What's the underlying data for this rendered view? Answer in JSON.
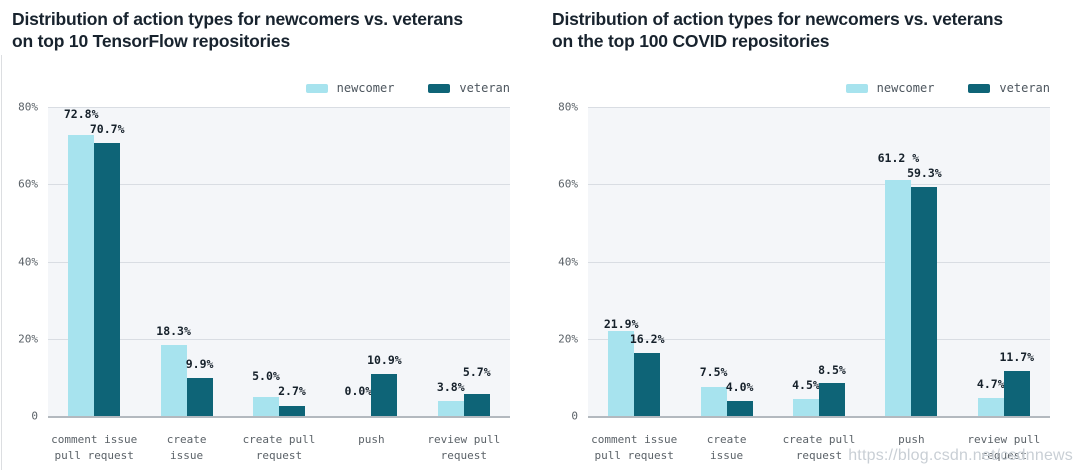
{
  "watermark": "https://blog.csdn.net/csdnnews",
  "colors": {
    "newcomer": "#a7e3ee",
    "veteran": "#0e6477",
    "plot_background": "#f4f6f9",
    "gridline": "#d9dde3",
    "axis_line": "#b3b9bf",
    "title_text": "#18232e",
    "tick_text": "#5b6268",
    "data_label_text": "#16212b"
  },
  "legend": {
    "items": [
      {
        "label": "newcomer",
        "color": "#a7e3ee"
      },
      {
        "label": "veteran",
        "color": "#0e6477"
      }
    ]
  },
  "chart_data": [
    {
      "type": "bar",
      "title": "Distribution of action types for newcomers vs. veterans on top 10 TensorFlow repositories",
      "title_lines": [
        "Distribution of action types for newcomers vs. veterans",
        "on top 10 TensorFlow repositories"
      ],
      "categories": [
        "comment issue\npull request",
        "create\nissue",
        "create pull\nrequest",
        "push",
        "review pull\nrequest"
      ],
      "series": [
        {
          "name": "newcomer",
          "color": "#a7e3ee",
          "values": [
            72.8,
            18.3,
            5.0,
            0.0,
            3.8
          ],
          "labels": [
            "72.8%",
            "18.3%",
            "5.0%",
            "0.0%",
            "3.8%"
          ]
        },
        {
          "name": "veteran",
          "color": "#0e6477",
          "values": [
            70.7,
            9.9,
            2.7,
            10.9,
            5.7
          ],
          "labels": [
            "70.7%",
            "9.9%",
            "2.7%",
            "10.9%",
            "5.7%"
          ]
        }
      ],
      "ylim": [
        0,
        80
      ],
      "yticks": [
        {
          "value": 80,
          "label": "80%"
        },
        {
          "value": 60,
          "label": "60%"
        },
        {
          "value": 40,
          "label": "40%"
        },
        {
          "value": 20,
          "label": "20%"
        },
        {
          "value": 0,
          "label": "0"
        }
      ],
      "grid": true,
      "legend_position": "top-right"
    },
    {
      "type": "bar",
      "title": "Distribution of action types for newcomers vs. veterans on the top 100 COVID repositories",
      "title_lines": [
        "Distribution of action types for newcomers vs. veterans",
        "on the top 100 COVID repositories"
      ],
      "categories": [
        "comment issue\npull request",
        "create\nissue",
        "create pull\nrequest",
        "push",
        "review pull\nrequest"
      ],
      "series": [
        {
          "name": "newcomer",
          "color": "#a7e3ee",
          "values": [
            21.9,
            7.5,
            4.5,
            61.2,
            4.7
          ],
          "labels": [
            "21.9%",
            "7.5%",
            "4.5%",
            "61.2 %",
            "4.7%"
          ]
        },
        {
          "name": "veteran",
          "color": "#0e6477",
          "values": [
            16.2,
            4.0,
            8.5,
            59.3,
            11.7
          ],
          "labels": [
            "16.2%",
            "4.0%",
            "8.5%",
            "59.3%",
            "11.7%"
          ]
        }
      ],
      "ylim": [
        0,
        80
      ],
      "yticks": [
        {
          "value": 80,
          "label": "80%"
        },
        {
          "value": 60,
          "label": "60%"
        },
        {
          "value": 40,
          "label": "40%"
        },
        {
          "value": 20,
          "label": "20%"
        },
        {
          "value": 0,
          "label": "0"
        }
      ],
      "grid": true,
      "legend_position": "top-right"
    }
  ]
}
